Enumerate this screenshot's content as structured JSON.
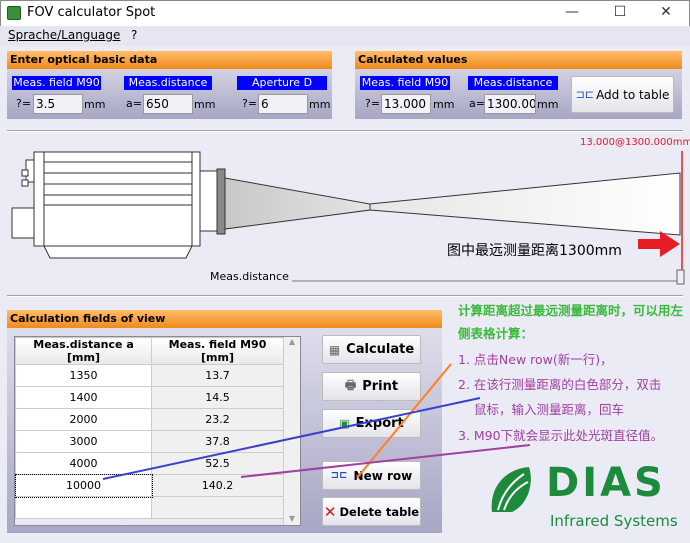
{
  "window": {
    "title": "FOV calculator Spot",
    "minimize": "—",
    "maximize": "☐",
    "close": "✕"
  },
  "menu": {
    "items": [
      "Sprache/Language",
      "?"
    ]
  },
  "basic": {
    "header": "Enter optical basic data",
    "fields": [
      {
        "label": "Meas. field M90",
        "prefix": "?=",
        "value": "3.5",
        "unit": "mm"
      },
      {
        "label": "Meas.distance",
        "prefix": "a=",
        "value": "650",
        "unit": "mm"
      },
      {
        "label": "Aperture D",
        "prefix": "?=",
        "value": "6",
        "unit": "mm"
      }
    ]
  },
  "calculated": {
    "header": "Calculated values",
    "fields": [
      {
        "label": "Meas. field M90",
        "prefix": "?=",
        "value": "13.000",
        "unit": "mm"
      },
      {
        "label": "Meas.distance",
        "prefix": "a=",
        "value": "1300.000",
        "unit": "mm"
      }
    ],
    "add_button": "Add to table"
  },
  "diagram": {
    "spot_label": "13.000@1300.000mm",
    "annotation": "图中最远测量距离1300mm",
    "slider_label": "Meas.distance",
    "slider_value": 1.0,
    "marker_color": "#e81c24"
  },
  "table_panel": {
    "header": "Calculation fields of view",
    "columns": [
      "Meas.distance a [mm]",
      "Meas. field M90 [mm]"
    ],
    "rows": [
      [
        "1350",
        "13.7"
      ],
      [
        "1400",
        "14.5"
      ],
      [
        "2000",
        "23.2"
      ],
      [
        "3000",
        "37.8"
      ],
      [
        "4000",
        "52.5"
      ],
      [
        "10000",
        "140.2"
      ],
      [
        "",
        ""
      ]
    ],
    "buttons": {
      "calculate": "Calculate",
      "print": "Print",
      "export": "Export",
      "new_row": "New row",
      "delete": "Delete table"
    }
  },
  "notes": {
    "title": "计算距离超过最远测量距离时，可以用左侧表格计算：",
    "steps": [
      "1. 点击New row(新一行)，",
      "2. 在该行测量距离的白色部分，双击",
      "鼠标，输入测量距离，回车",
      "3. M90下就会显示此处光斑直径值。"
    ],
    "title_color": "#3cb93c",
    "step_color": "#a040a0"
  },
  "logo": {
    "name": "DIAS",
    "subtitle": "Infrared Systems",
    "color": "#1e8a3c"
  }
}
